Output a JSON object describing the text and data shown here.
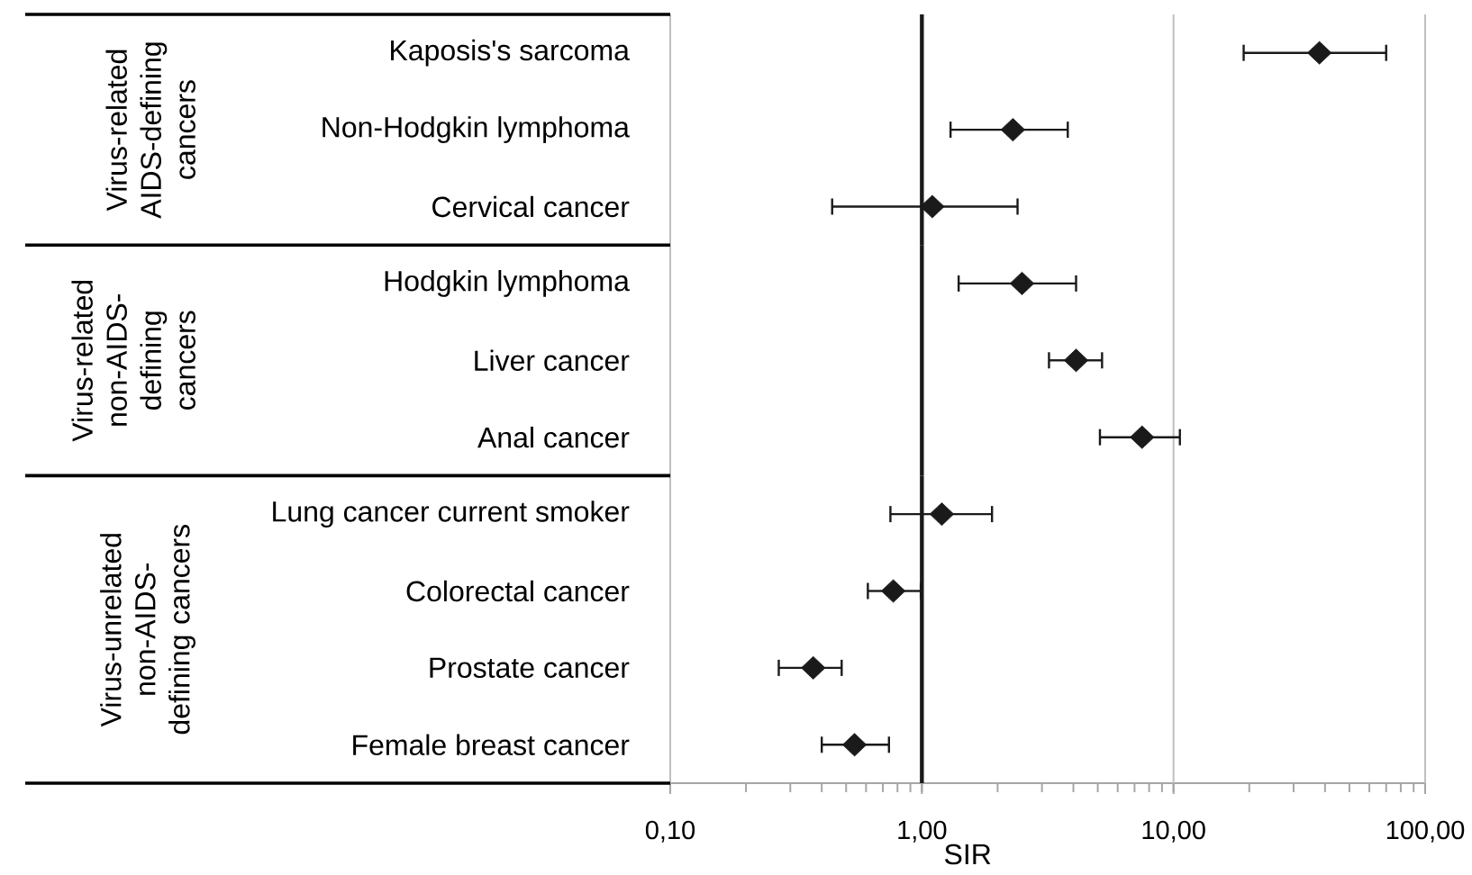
{
  "chart_data": [
    {
      "type": "scatter",
      "orientation": "horizontal",
      "ylabel": "Virus-related AIDS-defining cancers",
      "categories": [
        "Kaposis's sarcoma",
        "Non-Hodgkin lymphoma",
        "Cervical cancer"
      ],
      "values": [
        38,
        2.3,
        1.1
      ],
      "errors": [
        [
          19,
          70
        ],
        [
          1.3,
          3.8
        ],
        [
          0.44,
          2.4
        ]
      ],
      "color": "#1a1a1a",
      "marker": "diamond",
      "log": "x",
      "xlim": [
        0.1,
        100
      ],
      "ref_lines": [
        {
          "axis": "x",
          "value": 1,
          "color": "#1a1a1a"
        }
      ],
      "tick_labels": "y"
    },
    {
      "type": "scatter",
      "orientation": "horizontal",
      "ylabel": "Virus-related non-AIDS-defining cancers",
      "categories": [
        "Hodgkin lymphoma",
        "Liver cancer",
        "Anal cancer"
      ],
      "values": [
        2.5,
        4.1,
        7.5
      ],
      "errors": [
        [
          1.4,
          4.1
        ],
        [
          3.2,
          5.2
        ],
        [
          5.1,
          10.6
        ]
      ],
      "color": "#1a1a1a",
      "marker": "diamond",
      "log": "x",
      "xlim": [
        0.1,
        100
      ],
      "ref_lines": [
        {
          "axis": "x",
          "value": 1,
          "color": "#1a1a1a"
        }
      ],
      "tick_labels": "y"
    },
    {
      "type": "scatter",
      "orientation": "horizontal",
      "ylabel": "Virus-unrelated non-AIDS-defining cancers",
      "xlabel": "SIR",
      "categories": [
        "Lung cancer current smoker",
        "Colorectal cancer",
        "Prostate cancer",
        "Female breast cancer"
      ],
      "values": [
        1.2,
        0.77,
        0.37,
        0.54
      ],
      "errors": [
        [
          0.75,
          1.9
        ],
        [
          0.61,
          0.99
        ],
        [
          0.27,
          0.48
        ],
        [
          0.4,
          0.74
        ]
      ],
      "color": "#1a1a1a",
      "marker": "diamond",
      "log": "x",
      "xlim": [
        0.1,
        100
      ],
      "xticks": [
        {
          "value": 0.1,
          "label": "0,10"
        },
        {
          "value": 1,
          "label": "1,00"
        },
        {
          "value": 10,
          "label": "10,00"
        },
        {
          "value": 100,
          "label": "100,00"
        }
      ],
      "grid": "x",
      "ref_lines": [
        {
          "axis": "x",
          "value": 1,
          "color": "#1a1a1a"
        }
      ]
    }
  ]
}
